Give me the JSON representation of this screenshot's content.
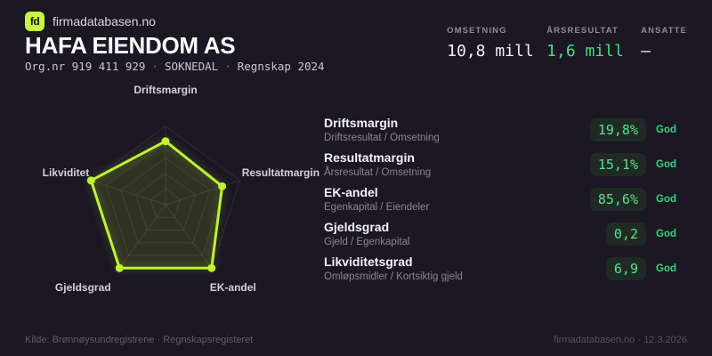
{
  "brand": {
    "logo_text": "fd",
    "name": "firmadatabasen.no"
  },
  "header": {
    "company_name": "HAFA EIENDOM AS",
    "org_number": "Org.nr 919 411 929",
    "separator": "·",
    "location": "SOKNEDAL",
    "report": "Regnskap 2024"
  },
  "stats": [
    {
      "label": "OMSETNING",
      "value": "10,8 mill",
      "tone": "default"
    },
    {
      "label": "ÅRSRESULTAT",
      "value": "1,6 mill",
      "tone": "positive"
    },
    {
      "label": "ANSATTE",
      "value": "–",
      "tone": "default"
    }
  ],
  "chart_data": {
    "type": "radar",
    "title": "",
    "categories": [
      "Driftsmargin",
      "Resultatmargin",
      "EK-andel",
      "Gjeldsgrad",
      "Likviditet"
    ],
    "values_normalized": [
      0.81,
      0.76,
      1.0,
      1.0,
      1.0
    ],
    "range": [
      0,
      1
    ],
    "ring_count": 5,
    "grid": "pentagon-web",
    "legend": "none",
    "accent_color": "#bff331",
    "fill_opacity": 0.13
  },
  "metrics": [
    {
      "title": "Driftsmargin",
      "formula": "Driftsresultat / Omsetning",
      "value": "19,8%",
      "rating": "God"
    },
    {
      "title": "Resultatmargin",
      "formula": "Årsresultat / Omsetning",
      "value": "15,1%",
      "rating": "God"
    },
    {
      "title": "EK-andel",
      "formula": "Egenkapital / Eiendeler",
      "value": "85,6%",
      "rating": "God"
    },
    {
      "title": "Gjeldsgrad",
      "formula": "Gjeld / Egenkapital",
      "value": "0,2",
      "rating": "God"
    },
    {
      "title": "Likviditetsgrad",
      "formula": "Omløpsmidler / Kortsiktig gjeld",
      "value": "6,9",
      "rating": "God"
    }
  ],
  "footer": {
    "source": "Kilde: Brønnøysundregistrene · Regnskapsregisteret",
    "site": "firmadatabasen.no · 12.3.2026"
  },
  "colors": {
    "background": "#1b1723",
    "accent": "#bff331",
    "positive": "#4ade80",
    "pill_background": "#1f2a24",
    "pill_text": "#5ce08b",
    "muted_text": "#8b8596"
  }
}
